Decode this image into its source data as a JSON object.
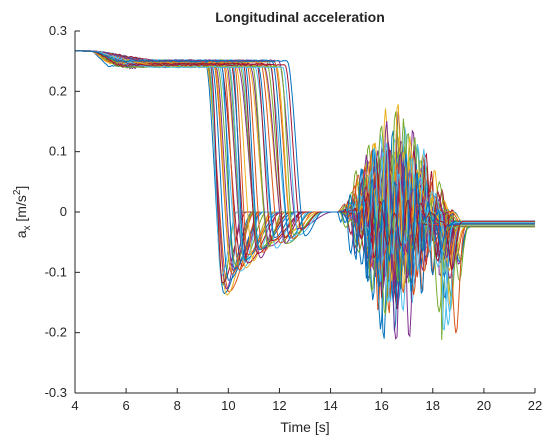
{
  "chart_data": {
    "type": "line",
    "title": "Longitudinal acceleration",
    "xlabel": "Time [s]",
    "ylabel": {
      "base": "a",
      "sub": "x",
      "unit_open": " [m/s",
      "unit_sup": "2",
      "unit_close": "]"
    },
    "xlim": [
      4,
      22
    ],
    "ylim": [
      -0.3,
      0.3
    ],
    "xticks": [
      4,
      6,
      8,
      10,
      12,
      14,
      16,
      18,
      20,
      22
    ],
    "yticks": [
      -0.3,
      -0.2,
      -0.1,
      0,
      0.1,
      0.2,
      0.3
    ],
    "grid": false,
    "legend": "none",
    "series_count": 50,
    "series_colors": [
      "#0072BD",
      "#D95319",
      "#EDB120",
      "#7E2F8E",
      "#77AC30",
      "#4DBEEE",
      "#A2142F"
    ],
    "envelope": {
      "initial_level": 0.267,
      "plateau_level_range": [
        0.24,
        0.252
      ],
      "first_drop_time_range": [
        9.1,
        12.3
      ],
      "first_min_range": [
        -0.145,
        -0.03
      ],
      "first_min_time_range": [
        9.8,
        12.8
      ],
      "settle_level": 0,
      "settle_time": 14.0,
      "oscillation_time_range": [
        14.2,
        18.9
      ],
      "oscillation_max": 0.29,
      "oscillation_min": -0.21,
      "second_min": -0.245,
      "second_min_time": 18.4,
      "final_level_range": [
        -0.025,
        -0.015
      ],
      "end_time": 22
    }
  }
}
